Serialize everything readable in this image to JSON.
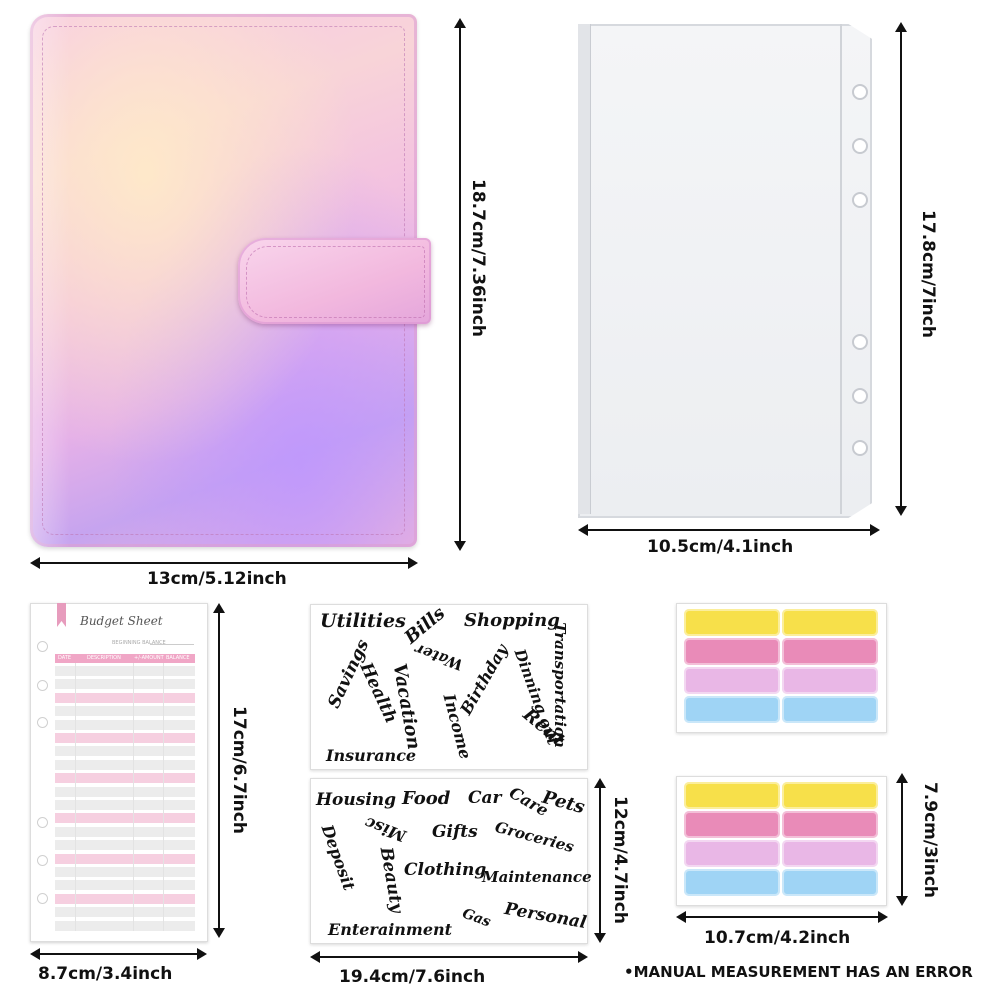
{
  "dimensions": {
    "binder_height": "18.7cm/7.36inch",
    "binder_width": "13cm/5.12inch",
    "envelope_height": "17.8cm/7inch",
    "envelope_width": "10.5cm/4.1inch",
    "sheet_height": "17cm/6.7inch",
    "sheet_width": "8.7cm/3.4inch",
    "stickers_width": "19.4cm/7.6inch",
    "stickers_height": "12cm/4.7inch",
    "tabs_height": "7.9cm/3inch",
    "tabs_width": "10.7cm/4.2inch"
  },
  "budget_sheet": {
    "title": "Budget Sheet",
    "subtitle": "BEGINNING BALANCE",
    "columns": [
      "DATE",
      "DESCRIPTION",
      "+/-AMOUNT",
      "BALANCE"
    ]
  },
  "stickers_top": [
    "Utilities",
    "Bills",
    "Shopping",
    "Transportation",
    "Savings",
    "Health",
    "Water",
    "Birthday",
    "Dinning out",
    "Vacation",
    "Income",
    "Rent",
    "Insurance"
  ],
  "stickers_bottom": [
    "Housing",
    "Food",
    "Car",
    "Care",
    "Pets",
    "Misc",
    "Gifts",
    "Groceries",
    "Deposit",
    "Beauty",
    "Clothing",
    "Maintenance",
    "Personal",
    "Gas",
    "Enterainment"
  ],
  "tab_colors": [
    "#f7e04a",
    "#e98bb8",
    "#e9b7e6",
    "#9fd4f5"
  ],
  "colors": {
    "binder_pink": "#f3c2e0",
    "sheet_pink": "#f0a6c6"
  },
  "footnote": "•MANUAL MEASUREMENT HAS AN ERROR"
}
